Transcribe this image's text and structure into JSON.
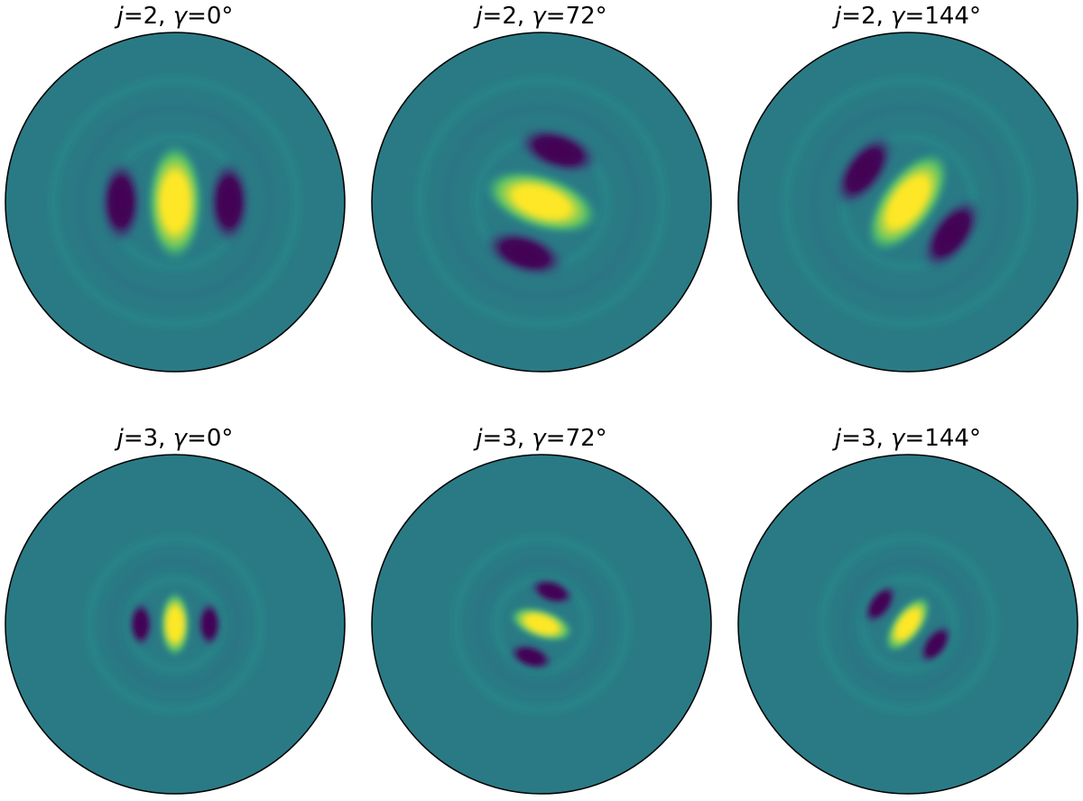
{
  "colors": {
    "colormap": [
      "#440154",
      "#3b528b",
      "#21918c",
      "#5ec962",
      "#fde725"
    ],
    "background_fill": "#2a7a85",
    "disk_outline": "#000000"
  },
  "panels": [
    {
      "j": "2",
      "gamma": "0°",
      "prefix": "=2, ",
      "suffix": "=0°",
      "scale": "coarse"
    },
    {
      "j": "2",
      "gamma": "72°",
      "prefix": "=2, ",
      "suffix": "=72°",
      "scale": "coarse"
    },
    {
      "j": "2",
      "gamma": "144°",
      "prefix": "=2, ",
      "suffix": "=144°",
      "scale": "coarse"
    },
    {
      "j": "3",
      "gamma": "0°",
      "prefix": "=3, ",
      "suffix": "=0°",
      "scale": "fine"
    },
    {
      "j": "3",
      "gamma": "72°",
      "prefix": "=3, ",
      "suffix": "=72°",
      "scale": "fine"
    },
    {
      "j": "3",
      "gamma": "144°",
      "prefix": "=3, ",
      "suffix": "=144°",
      "scale": "fine"
    }
  ],
  "symbols": {
    "j": "j",
    "gamma": "γ"
  }
}
